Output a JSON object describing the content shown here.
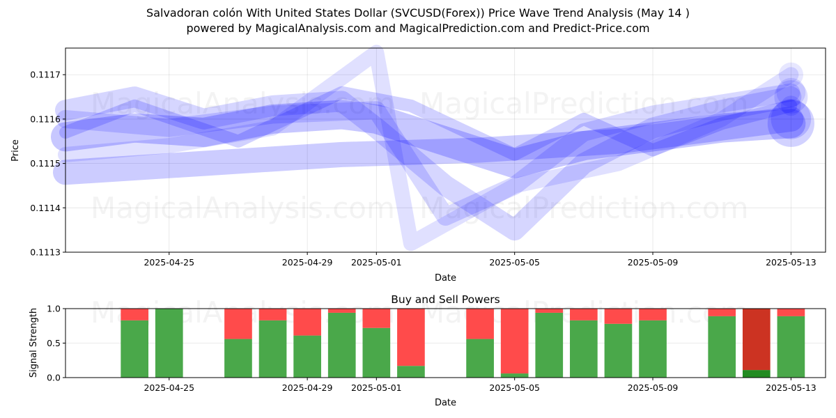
{
  "title_line1": "Salvadoran colón With United States Dollar (SVCUSD(Forex)) Price Wave Trend Analysis (May 14 )",
  "title_line2": "powered by MagicalAnalysis.com and MagicalPrediction.com and Predict-Price.com",
  "watermarks": [
    "MagicalAnalysis.com",
    "MagicalPrediction.com"
  ],
  "colors": {
    "wave": "#0000ff",
    "buy": "#4aa84a",
    "sell": "#ff4b4b",
    "sell_dark": "#cc3322",
    "buy_dark": "#228b22"
  },
  "chart_data": [
    {
      "type": "line",
      "title": "",
      "xlabel": "Date",
      "ylabel": "Price",
      "x_tick_labels": [
        "2025-04-25",
        "2025-04-29",
        "2025-05-01",
        "2025-05-05",
        "2025-05-09",
        "2025-05-13"
      ],
      "x_ticks": [
        "2025-04-25",
        "2025-04-29",
        "2025-05-01",
        "2025-05-05",
        "2025-05-09",
        "2025-05-13"
      ],
      "y_tick_labels": [
        "0.1113",
        "0.1114",
        "0.1115",
        "0.1116",
        "0.1117"
      ],
      "y_ticks": [
        0.1113,
        0.1114,
        0.1115,
        0.1116,
        0.1117
      ],
      "xlim": [
        "2025-04-22",
        "2025-05-14"
      ],
      "ylim": [
        0.1113,
        0.11176
      ],
      "grid": true,
      "series": [
        {
          "x": [
            "2025-04-22",
            "2025-04-24",
            "2025-04-26",
            "2025-04-28",
            "2025-04-30",
            "2025-05-01",
            "2025-05-03",
            "2025-05-05",
            "2025-05-07",
            "2025-05-09",
            "2025-05-11",
            "2025-05-13"
          ],
          "y": [
            0.11156,
            0.11158,
            0.11157,
            0.1116,
            0.11161,
            0.1116,
            0.11155,
            0.1115,
            0.11154,
            0.11156,
            0.11158,
            0.11159
          ]
        },
        {
          "x": [
            "2025-04-22",
            "2025-04-24",
            "2025-04-26",
            "2025-04-28",
            "2025-04-30",
            "2025-05-01",
            "2025-05-03",
            "2025-05-05",
            "2025-05-07",
            "2025-05-09",
            "2025-05-11",
            "2025-05-13"
          ],
          "y": [
            0.11162,
            0.11165,
            0.1116,
            0.11163,
            0.11164,
            0.11158,
            0.11145,
            0.11135,
            0.1115,
            0.11158,
            0.11162,
            0.11165
          ]
        },
        {
          "x": [
            "2025-04-22",
            "2025-04-25",
            "2025-04-28",
            "2025-05-01",
            "2025-05-02",
            "2025-05-05",
            "2025-05-08",
            "2025-05-11",
            "2025-05-13"
          ],
          "y": [
            0.11152,
            0.11154,
            0.11158,
            0.11175,
            0.11132,
            0.11145,
            0.1115,
            0.1116,
            0.1117
          ]
        },
        {
          "x": [
            "2025-04-22",
            "2025-04-26",
            "2025-04-30",
            "2025-05-04",
            "2025-05-08",
            "2025-05-13"
          ],
          "y": [
            0.11148,
            0.1115,
            0.11152,
            0.11153,
            0.11155,
            0.1116
          ]
        },
        {
          "x": [
            "2025-04-22",
            "2025-04-24",
            "2025-04-27",
            "2025-04-30",
            "2025-05-02",
            "2025-05-05",
            "2025-05-07",
            "2025-05-09",
            "2025-05-11",
            "2025-05-13"
          ],
          "y": [
            0.11157,
            0.11163,
            0.11155,
            0.11166,
            0.11163,
            0.11152,
            0.1116,
            0.11153,
            0.11159,
            0.11163
          ]
        },
        {
          "x": [
            "2025-04-22",
            "2025-04-25",
            "2025-04-28",
            "2025-05-01",
            "2025-05-03",
            "2025-05-05",
            "2025-05-07",
            "2025-05-09",
            "2025-05-13"
          ],
          "y": [
            0.1116,
            0.11158,
            0.11161,
            0.11162,
            0.11138,
            0.11145,
            0.11157,
            0.11161,
            0.11166
          ]
        }
      ]
    },
    {
      "type": "bar",
      "title": "Buy and Sell Powers",
      "xlabel": "Date",
      "ylabel": "Signal Strength",
      "ylim": [
        0.0,
        1.0
      ],
      "y_tick_labels": [
        "0.0",
        "0.5",
        "1.0"
      ],
      "y_ticks": [
        0.0,
        0.5,
        1.0
      ],
      "x_tick_labels": [
        "2025-04-25",
        "2025-04-29",
        "2025-05-01",
        "2025-05-05",
        "2025-05-09",
        "2025-05-13"
      ],
      "x_ticks": [
        "2025-04-25",
        "2025-04-29",
        "2025-05-01",
        "2025-05-05",
        "2025-05-09",
        "2025-05-13"
      ],
      "xlim": [
        "2025-04-22",
        "2025-05-14"
      ],
      "categories": [
        "2025-04-24",
        "2025-04-25",
        "2025-04-27",
        "2025-04-28",
        "2025-04-29",
        "2025-04-30",
        "2025-05-01",
        "2025-05-02",
        "2025-05-04",
        "2025-05-05",
        "2025-05-06",
        "2025-05-07",
        "2025-05-08",
        "2025-05-09",
        "2025-05-11",
        "2025-05-12",
        "2025-05-13"
      ],
      "series": [
        {
          "name": "Buy",
          "values": [
            0.83,
            1.0,
            0.56,
            0.83,
            0.61,
            0.94,
            0.72,
            0.17,
            0.56,
            0.06,
            0.94,
            0.83,
            0.78,
            0.83,
            0.89,
            0.11,
            0.89
          ]
        },
        {
          "name": "Sell",
          "values": [
            0.17,
            0.0,
            0.44,
            0.17,
            0.39,
            0.06,
            0.28,
            0.83,
            0.44,
            0.94,
            0.06,
            0.17,
            0.22,
            0.17,
            0.11,
            0.89,
            0.11
          ]
        }
      ],
      "highlighted_category": "2025-05-12"
    }
  ]
}
